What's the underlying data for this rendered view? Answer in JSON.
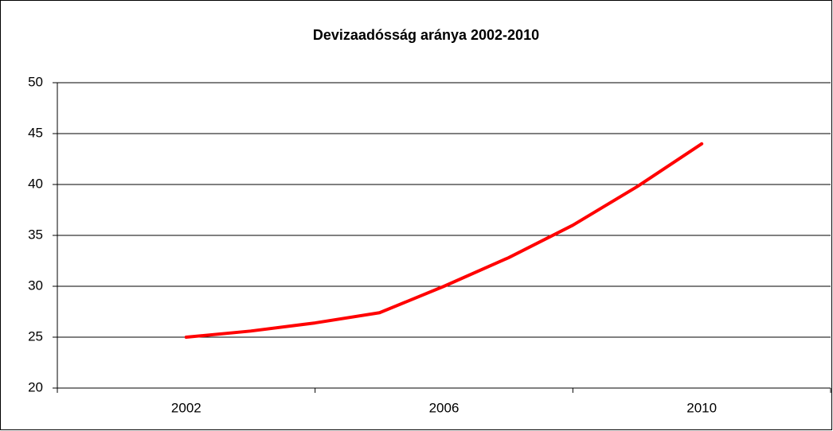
{
  "chart_data": {
    "type": "line",
    "title": "Devizaadósság aránya 2002-2010",
    "x": [
      2002,
      2003,
      2004,
      2005,
      2006,
      2007,
      2008,
      2009,
      2010
    ],
    "series": [
      {
        "name": null,
        "color": "#ff0000",
        "values": [
          25,
          25.6,
          26.4,
          27.4,
          30,
          32.8,
          36,
          39.8,
          44
        ]
      }
    ],
    "xlim": [
      2000,
      2012
    ],
    "xticks": [
      2002,
      2006,
      2010
    ],
    "ylim": [
      20,
      50
    ],
    "yticks": [
      20,
      25,
      30,
      35,
      40,
      45,
      50
    ],
    "grid": true
  }
}
